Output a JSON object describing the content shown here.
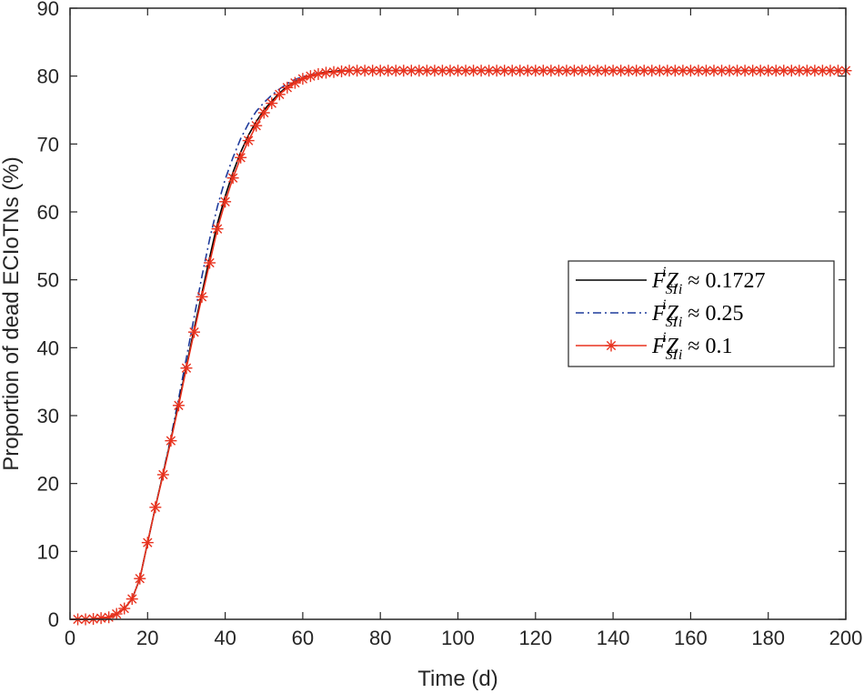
{
  "chart_data": {
    "type": "line",
    "title": "",
    "xlabel": "Time (d)",
    "ylabel": "Proportion of dead ECIoTNs (%)",
    "xlim": [
      0,
      200
    ],
    "ylim": [
      0,
      90
    ],
    "xticks": [
      "0",
      "20",
      "40",
      "60",
      "80",
      "100",
      "120",
      "140",
      "160",
      "180",
      "200"
    ],
    "yticks": [
      "0",
      "10",
      "20",
      "30",
      "40",
      "50",
      "60",
      "70",
      "80",
      "90"
    ],
    "grid": false,
    "legend_position": "right",
    "colors": {
      "series1": "#000000",
      "series2": "#1f3b9c",
      "series3": "#e8321e"
    },
    "series": [
      {
        "name": "F_SI^i Z_i ≈ 0.1727",
        "legend_value": "0.1727",
        "style": "solid",
        "x": [
          0,
          5,
          10,
          12,
          14,
          16,
          18,
          20,
          22,
          24,
          26,
          28,
          30,
          32,
          34,
          36,
          38,
          40,
          42,
          44,
          46,
          48,
          50,
          52,
          54,
          56,
          58,
          60,
          62,
          64,
          66,
          68,
          70,
          72,
          75,
          80,
          90,
          100,
          120,
          140,
          160,
          180,
          200
        ],
        "y": [
          0,
          0,
          0.3,
          0.8,
          1.6,
          3.0,
          6.0,
          11.3,
          16.5,
          21.5,
          26.5,
          31.8,
          37.3,
          42.8,
          48.0,
          53.3,
          58.3,
          62.3,
          65.8,
          68.8,
          71.3,
          73.3,
          75.0,
          76.3,
          77.5,
          78.5,
          79.2,
          79.7,
          80.1,
          80.4,
          80.6,
          80.7,
          80.8,
          80.8,
          80.8,
          80.8,
          80.8,
          80.8,
          80.8,
          80.8,
          80.8,
          80.8,
          80.8
        ]
      },
      {
        "name": "F_SI^i Z_i ≈ 0.25",
        "legend_value": "0.25",
        "style": "dashdot",
        "x": [
          0,
          5,
          10,
          12,
          14,
          16,
          18,
          20,
          22,
          24,
          26,
          28,
          30,
          32,
          34,
          36,
          38,
          40,
          42,
          44,
          46,
          48,
          50,
          52,
          54,
          56,
          58,
          60,
          62,
          64,
          66,
          68,
          70,
          72,
          75,
          80,
          90,
          100,
          120,
          140,
          160,
          180,
          200
        ],
        "y": [
          0,
          0,
          0.3,
          0.8,
          1.6,
          3.0,
          6.0,
          11.3,
          16.5,
          21.5,
          26.8,
          32.5,
          38.5,
          44.5,
          50.5,
          56.0,
          60.8,
          64.8,
          68.0,
          70.8,
          73.0,
          74.8,
          76.1,
          77.2,
          78.1,
          78.9,
          79.5,
          79.9,
          80.2,
          80.4,
          80.6,
          80.7,
          80.8,
          80.8,
          80.8,
          80.8,
          80.8,
          80.8,
          80.8,
          80.8,
          80.8,
          80.8,
          80.8
        ]
      },
      {
        "name": "F_SI^i Z_i ≈ 0.1",
        "legend_value": "0.1",
        "style": "solid-star",
        "x": [
          0,
          5,
          10,
          12,
          14,
          16,
          18,
          20,
          22,
          24,
          26,
          28,
          30,
          32,
          34,
          36,
          38,
          40,
          42,
          44,
          46,
          48,
          50,
          52,
          54,
          56,
          58,
          60,
          62,
          64,
          66,
          68,
          70,
          72,
          75,
          80,
          90,
          100,
          120,
          140,
          160,
          180,
          200
        ],
        "y": [
          0,
          0,
          0.3,
          0.8,
          1.6,
          3.0,
          6.0,
          11.3,
          16.5,
          21.3,
          26.3,
          31.5,
          37.0,
          42.3,
          47.5,
          52.5,
          57.5,
          61.5,
          65.0,
          68.0,
          70.5,
          72.7,
          74.6,
          76.0,
          77.3,
          78.3,
          79.0,
          79.6,
          80.0,
          80.3,
          80.5,
          80.6,
          80.7,
          80.8,
          80.8,
          80.8,
          80.8,
          80.8,
          80.8,
          80.8,
          80.8,
          80.8,
          80.8
        ]
      }
    ]
  }
}
